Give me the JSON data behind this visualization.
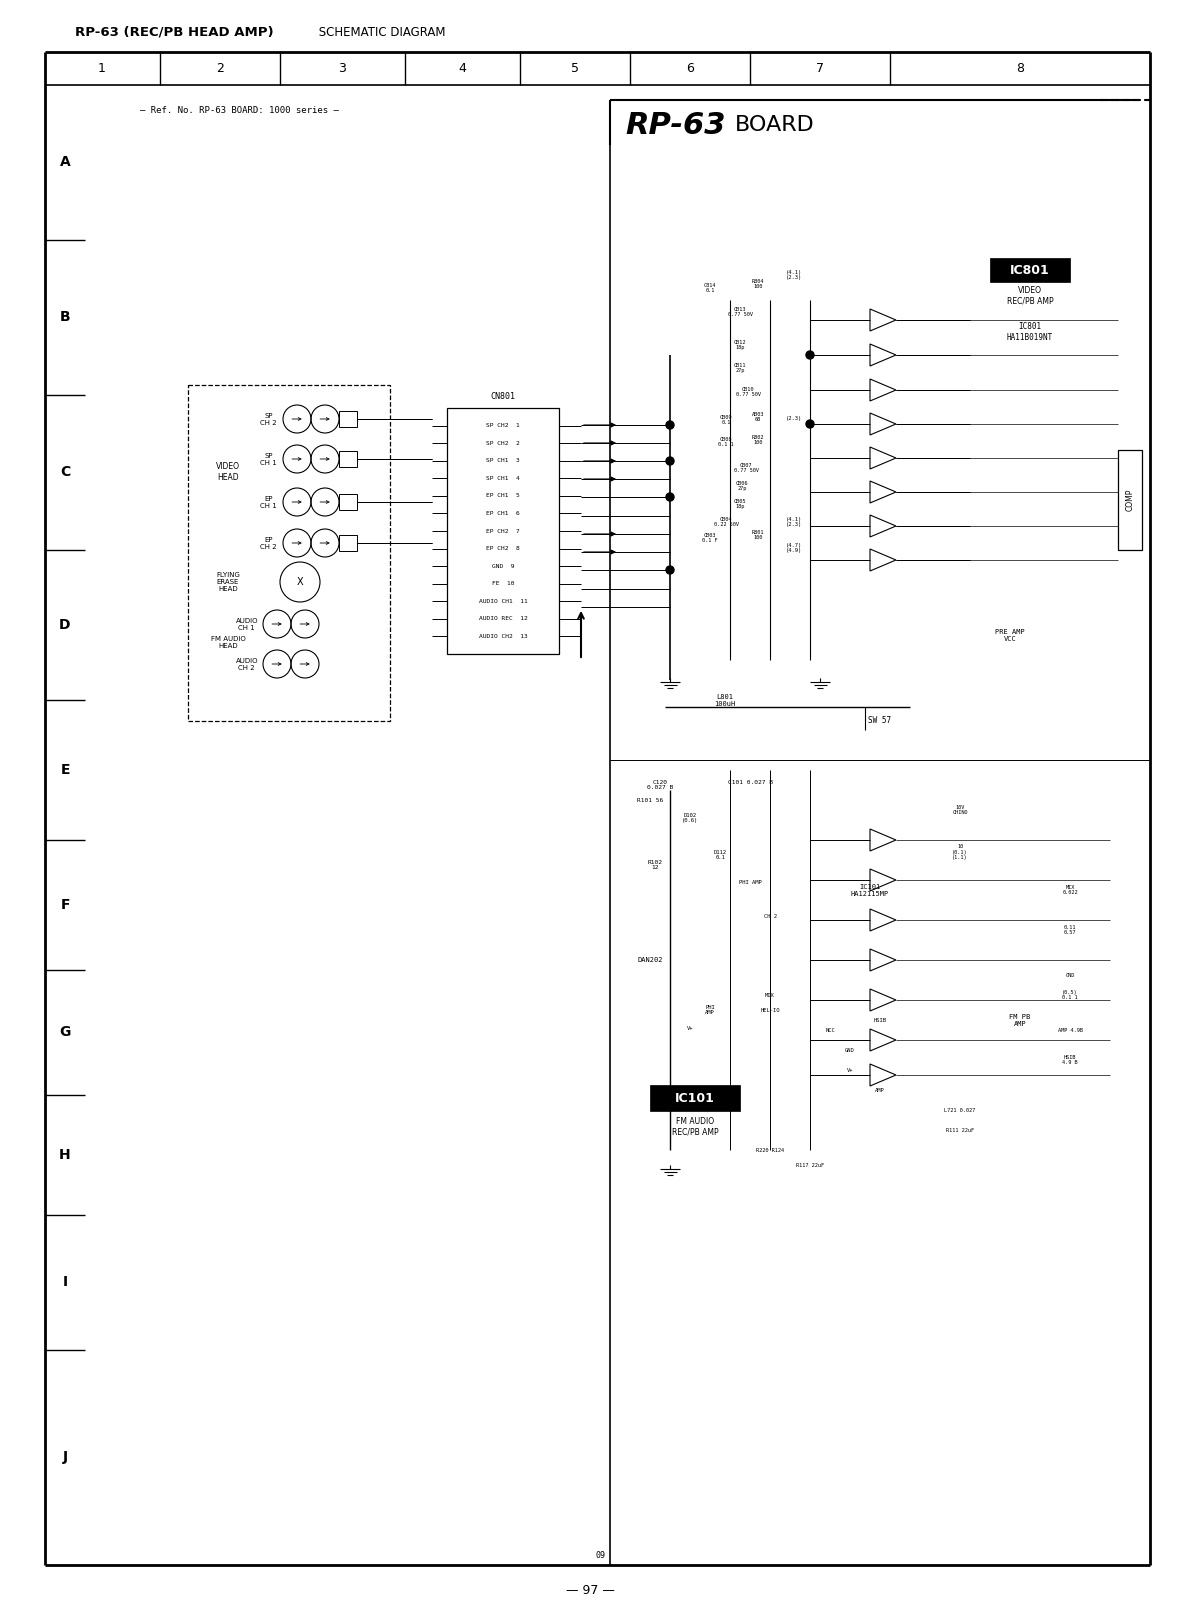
{
  "title_bold": "RP-63 (REC/PB HEAD AMP)",
  "title_normal": " SCHEMATIC DIAGRAM",
  "subtitle": "— Ref. No. RP-63 BOARD: 1000 series —",
  "board_bold": "RP-63",
  "board_normal": "BOARD",
  "page_number": "— 97 —",
  "page_ref": "09",
  "col_labels": [
    "1",
    "2",
    "3",
    "4",
    "5",
    "6",
    "7",
    "8"
  ],
  "row_labels": [
    "A",
    "B",
    "C",
    "D",
    "E",
    "F",
    "G",
    "H",
    "I",
    "J"
  ],
  "bg_color": "#ffffff",
  "ic801_label": "IC801",
  "ic801_sub1": "VIDEO",
  "ic801_sub2": "REC/PB AMP",
  "ic801_part": "IC801\nHA11B019NT",
  "ic101_label": "IC101",
  "ic101_sub1": "FM AUDIO",
  "ic101_sub2": "REC/PB AMP",
  "comp_label": "COMP",
  "connector_label": "CN801",
  "connector_pins": [
    "SP CH2  1",
    "SP CH2  2",
    "SP CH1  3",
    "SP CH1  4",
    "EP CH1  5",
    "EP CH1  6",
    "EP CH2  7",
    "EP CH2  8",
    "GND  9",
    "FE  10",
    "AUDIO CH1  11",
    "AUDIO REC  12",
    "AUDIO CH2  13"
  ]
}
